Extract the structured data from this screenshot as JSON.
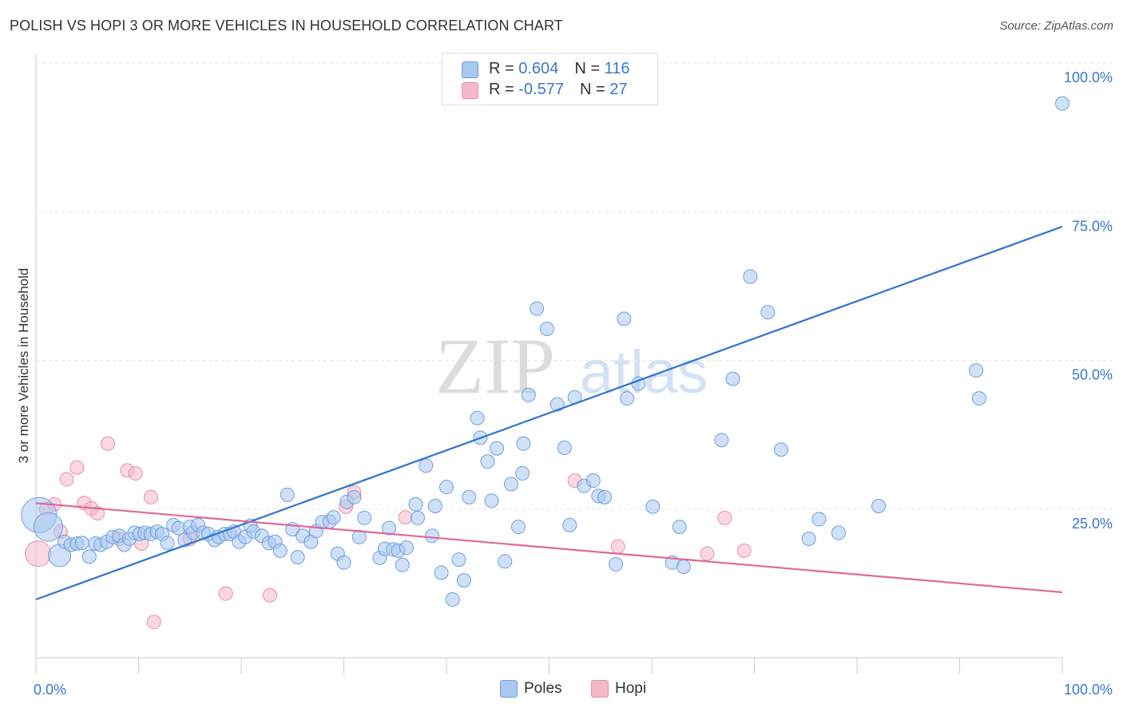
{
  "title": "POLISH VS HOPI 3 OR MORE VEHICLES IN HOUSEHOLD CORRELATION CHART",
  "source": "Source: ZipAtlas.com",
  "watermark": {
    "zip": "ZIP",
    "atlas": "atlas"
  },
  "colors": {
    "poles_fill": "#a9c8f0",
    "poles_stroke": "#6f9fdf",
    "poles_line": "#2f73d0",
    "hopi_fill": "#f5b8c9",
    "hopi_stroke": "#e890aa",
    "hopi_line": "#e0679a",
    "tick_blue": "#3a78cc",
    "grid": "#e3e3e3"
  },
  "legend": {
    "poles": {
      "r_label": "R = ",
      "r_value": "0.604",
      "n_label": "N = ",
      "n_value": "116"
    },
    "hopi": {
      "r_label": "R = ",
      "r_value": "-0.577",
      "n_label": "N = ",
      "n_value": "27"
    }
  },
  "bottom_legend": [
    "Poles",
    "Hopi"
  ],
  "chart_data": {
    "type": "scatter",
    "title": "POLISH VS HOPI 3 OR MORE VEHICLES IN HOUSEHOLD CORRELATION CHART",
    "xlabel": "",
    "ylabel": "3 or more Vehicles in Household",
    "xlim": [
      0,
      100
    ],
    "ylim": [
      0,
      100
    ],
    "x_tick_labels": [
      "0.0%",
      "100.0%"
    ],
    "y_ticks": [
      {
        "value": 25,
        "label": "25.0%"
      },
      {
        "value": 50,
        "label": "50.0%"
      },
      {
        "value": 75,
        "label": "75.0%"
      },
      {
        "value": 100,
        "label": "100.0%"
      }
    ],
    "series": [
      {
        "name": "Poles",
        "r": 0.604,
        "n": 116,
        "trend": {
          "x": [
            0,
            100
          ],
          "y": [
            9.8,
            72.5
          ]
        },
        "points": [
          [
            0.3,
            24.0,
            22
          ],
          [
            1.2,
            22.0,
            18
          ],
          [
            2.3,
            17.2,
            14
          ],
          [
            2.8,
            19.5,
            10
          ],
          [
            3.4,
            19.0,
            10
          ],
          [
            4.0,
            19.2,
            10
          ],
          [
            4.5,
            19.3,
            10
          ],
          [
            5.2,
            17.0,
            10
          ],
          [
            5.8,
            19.2,
            10
          ],
          [
            6.3,
            19.0,
            10
          ],
          [
            6.9,
            19.5,
            10
          ],
          [
            7.5,
            20.3,
            10
          ],
          [
            8.1,
            20.5,
            10
          ],
          [
            8.6,
            19.0,
            10
          ],
          [
            9.1,
            20.0,
            10
          ],
          [
            9.6,
            21.0,
            10
          ],
          [
            10.1,
            20.8,
            10
          ],
          [
            10.6,
            21.0,
            10
          ],
          [
            11.2,
            20.8,
            10
          ],
          [
            11.8,
            21.2,
            10
          ],
          [
            12.3,
            20.8,
            10
          ],
          [
            12.8,
            19.3,
            10
          ],
          [
            13.4,
            22.3,
            10
          ],
          [
            13.9,
            21.8,
            10
          ],
          [
            14.5,
            19.8,
            10
          ],
          [
            15.0,
            22.0,
            10
          ],
          [
            15.3,
            21.0,
            10
          ],
          [
            15.8,
            22.3,
            10
          ],
          [
            16.3,
            21.0,
            10
          ],
          [
            16.8,
            20.8,
            10
          ],
          [
            17.4,
            19.8,
            10
          ],
          [
            17.8,
            20.3,
            10
          ],
          [
            18.4,
            20.8,
            10
          ],
          [
            18.9,
            20.8,
            10
          ],
          [
            19.3,
            21.2,
            10
          ],
          [
            19.8,
            19.5,
            10
          ],
          [
            20.4,
            20.3,
            10
          ],
          [
            20.9,
            22.2,
            10
          ],
          [
            21.2,
            21.2,
            10
          ],
          [
            22.0,
            20.5,
            10
          ],
          [
            22.7,
            19.3,
            10
          ],
          [
            23.3,
            19.5,
            10
          ],
          [
            23.8,
            18.0,
            10
          ],
          [
            24.5,
            27.4,
            10
          ],
          [
            25.0,
            21.6,
            10
          ],
          [
            25.5,
            16.9,
            10
          ],
          [
            26.0,
            20.5,
            10
          ],
          [
            26.8,
            19.5,
            10
          ],
          [
            27.3,
            21.3,
            10
          ],
          [
            27.9,
            22.8,
            10
          ],
          [
            28.6,
            22.9,
            10
          ],
          [
            29.0,
            23.6,
            10
          ],
          [
            29.4,
            17.5,
            10
          ],
          [
            30.0,
            16.0,
            10
          ],
          [
            30.3,
            26.2,
            10
          ],
          [
            31.0,
            27.0,
            10
          ],
          [
            31.5,
            20.3,
            10
          ],
          [
            32.0,
            23.5,
            10
          ],
          [
            33.5,
            16.8,
            10
          ],
          [
            34.0,
            18.3,
            10
          ],
          [
            34.4,
            21.8,
            10
          ],
          [
            34.8,
            18.2,
            10
          ],
          [
            35.3,
            18.0,
            10
          ],
          [
            35.7,
            15.6,
            10
          ],
          [
            36.1,
            18.5,
            10
          ],
          [
            37.0,
            25.8,
            10
          ],
          [
            37.2,
            23.5,
            10
          ],
          [
            38.0,
            32.3,
            10
          ],
          [
            38.6,
            20.5,
            10
          ],
          [
            38.9,
            25.5,
            10
          ],
          [
            39.5,
            14.3,
            10
          ],
          [
            40.0,
            28.7,
            10
          ],
          [
            40.6,
            9.8,
            10
          ],
          [
            41.2,
            16.5,
            10
          ],
          [
            41.7,
            13.0,
            10
          ],
          [
            42.2,
            27.0,
            10
          ],
          [
            43.0,
            40.3,
            10
          ],
          [
            43.3,
            37.0,
            10
          ],
          [
            44.0,
            33.0,
            10
          ],
          [
            44.4,
            26.4,
            10
          ],
          [
            44.9,
            35.2,
            10
          ],
          [
            45.7,
            16.2,
            10
          ],
          [
            46.3,
            29.2,
            10
          ],
          [
            47.0,
            22.0,
            10
          ],
          [
            47.4,
            31.0,
            10
          ],
          [
            47.5,
            36.0,
            10
          ],
          [
            48.0,
            44.2,
            10
          ],
          [
            48.8,
            58.7,
            10
          ],
          [
            49.8,
            55.3,
            10
          ],
          [
            50.8,
            42.6,
            10
          ],
          [
            51.5,
            35.3,
            10
          ],
          [
            52.0,
            22.3,
            10
          ],
          [
            52.5,
            43.8,
            10
          ],
          [
            53.4,
            28.9,
            10
          ],
          [
            54.3,
            29.8,
            10
          ],
          [
            54.8,
            27.2,
            10
          ],
          [
            55.4,
            27.0,
            10
          ],
          [
            56.5,
            15.7,
            10
          ],
          [
            57.3,
            57.0,
            10
          ],
          [
            57.6,
            43.6,
            10
          ],
          [
            58.7,
            46.1,
            10
          ],
          [
            60.1,
            25.4,
            10
          ],
          [
            62.0,
            16.0,
            10
          ],
          [
            62.7,
            22.0,
            10
          ],
          [
            63.1,
            15.3,
            10
          ],
          [
            66.8,
            36.6,
            10
          ],
          [
            67.9,
            46.9,
            10
          ],
          [
            69.6,
            64.1,
            10
          ],
          [
            71.3,
            58.1,
            10
          ],
          [
            72.6,
            35.0,
            10
          ],
          [
            75.3,
            20.0,
            10
          ],
          [
            76.3,
            23.3,
            10
          ],
          [
            78.2,
            21.0,
            10
          ],
          [
            82.1,
            25.5,
            10
          ],
          [
            91.6,
            48.3,
            10
          ],
          [
            91.9,
            43.6,
            10
          ],
          [
            100.0,
            93.2,
            10
          ]
        ]
      },
      {
        "name": "Hopi",
        "r": -0.577,
        "n": 27,
        "trend": {
          "x": [
            0,
            100
          ],
          "y": [
            26.0,
            11.0
          ]
        },
        "points": [
          [
            0.2,
            17.5,
            16
          ],
          [
            1.0,
            25.0,
            10
          ],
          [
            1.8,
            25.8,
            10
          ],
          [
            2.4,
            21.2,
            10
          ],
          [
            3.0,
            30.0,
            10
          ],
          [
            4.0,
            32.0,
            10
          ],
          [
            4.7,
            26.0,
            10
          ],
          [
            5.4,
            25.1,
            10
          ],
          [
            6.0,
            24.3,
            10
          ],
          [
            7.0,
            36.0,
            10
          ],
          [
            8.1,
            20.0,
            10
          ],
          [
            8.9,
            31.5,
            10
          ],
          [
            9.7,
            31.0,
            10
          ],
          [
            10.3,
            19.2,
            10
          ],
          [
            11.2,
            27.0,
            10
          ],
          [
            11.5,
            6.0,
            10
          ],
          [
            15.0,
            20.0,
            10
          ],
          [
            18.5,
            10.8,
            10
          ],
          [
            22.8,
            10.5,
            10
          ],
          [
            30.2,
            25.4,
            10
          ],
          [
            31.0,
            27.8,
            10
          ],
          [
            36.0,
            23.6,
            10
          ],
          [
            52.5,
            29.8,
            10
          ],
          [
            56.7,
            18.7,
            10
          ],
          [
            65.4,
            17.5,
            10
          ],
          [
            67.1,
            23.5,
            10
          ],
          [
            69.0,
            18.0,
            10
          ]
        ]
      }
    ]
  }
}
